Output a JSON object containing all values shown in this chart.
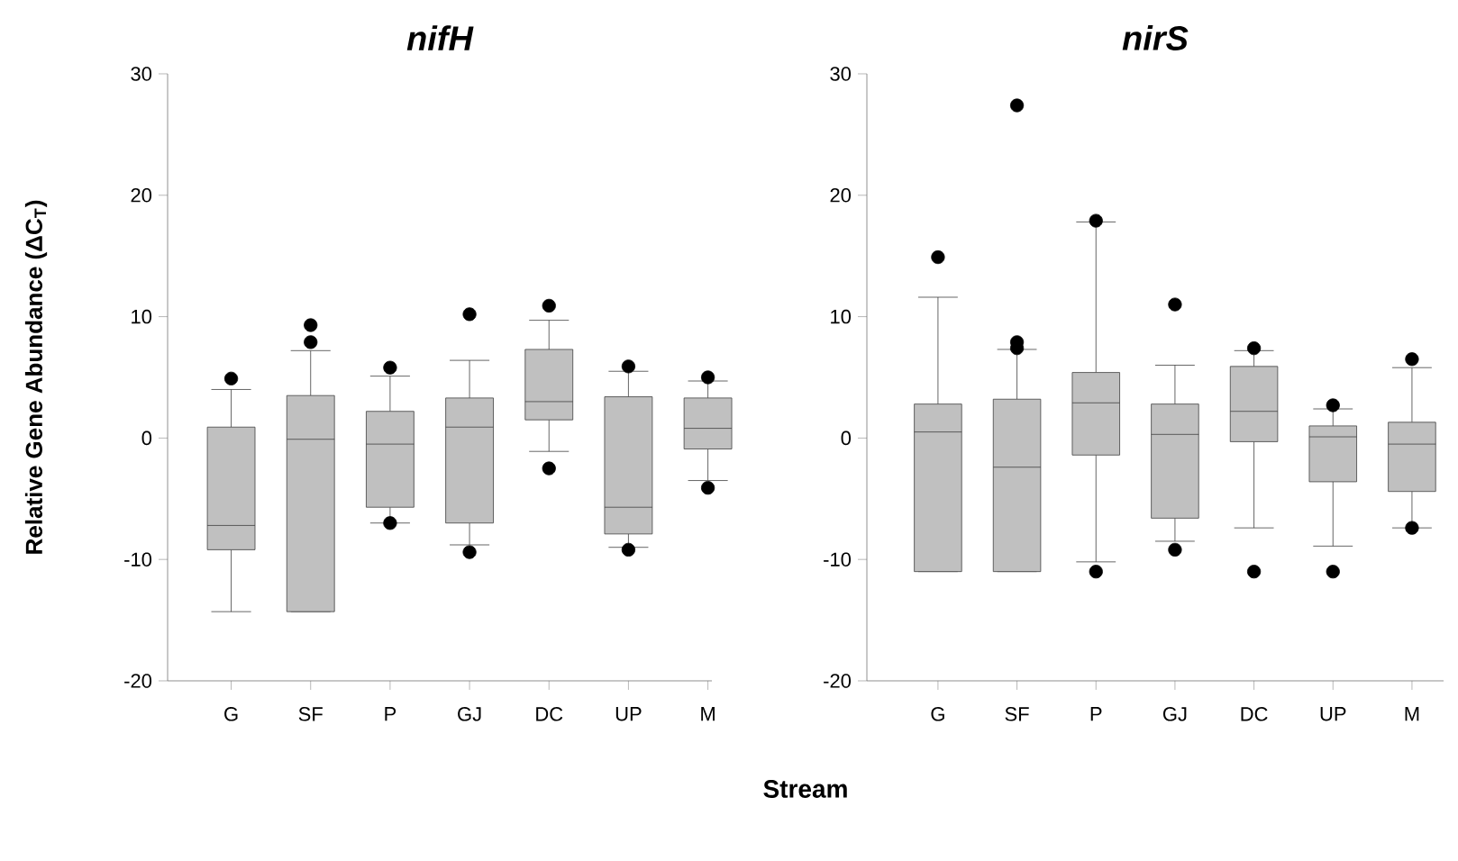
{
  "chart_data": [
    {
      "type": "box",
      "title": "nifH",
      "ylabel": "Relative Gene Abundance (ΔC$_{T}$)",
      "xlabel": "Stream",
      "color": "#c0c0c0",
      "categories": [
        "G",
        "SF",
        "P",
        "GJ",
        "DC",
        "UP",
        "M"
      ],
      "ylim": [
        -20,
        30
      ],
      "yticks": [
        -20,
        -10,
        0,
        10,
        20,
        30
      ],
      "boxes": [
        {
          "low": -14.3,
          "q1": -9.2,
          "median": -7.2,
          "q3": 0.9,
          "high": 4.0,
          "outliers": [
            4.9
          ]
        },
        {
          "low": -14.3,
          "q1": -14.3,
          "median": -0.1,
          "q3": 3.5,
          "high": 7.2,
          "outliers": [
            7.9,
            9.3
          ]
        },
        {
          "low": -7.0,
          "q1": -5.7,
          "median": -0.5,
          "q3": 2.2,
          "high": 5.1,
          "outliers": [
            5.8,
            -7.0
          ]
        },
        {
          "low": -8.8,
          "q1": -7.0,
          "median": 0.9,
          "q3": 3.3,
          "high": 6.4,
          "outliers": [
            10.2,
            -9.4
          ]
        },
        {
          "low": -1.1,
          "q1": 1.5,
          "median": 3.0,
          "q3": 7.3,
          "high": 9.7,
          "outliers": [
            10.9,
            -2.5
          ]
        },
        {
          "low": -9.0,
          "q1": -7.9,
          "median": -5.7,
          "q3": 3.4,
          "high": 5.5,
          "outliers": [
            5.9,
            -9.2
          ]
        },
        {
          "low": -3.5,
          "q1": -0.9,
          "median": 0.8,
          "q3": 3.3,
          "high": 4.7,
          "outliers": [
            5.0,
            -4.1
          ]
        }
      ]
    },
    {
      "type": "box",
      "title": "nirS",
      "color": "#c0c0c0",
      "categories": [
        "G",
        "SF",
        "P",
        "GJ",
        "DC",
        "UP",
        "M"
      ],
      "ylim": [
        -20,
        30
      ],
      "yticks": [
        -20,
        -10,
        0,
        10,
        20,
        30
      ],
      "boxes": [
        {
          "low": -11.0,
          "q1": -11.0,
          "median": 0.5,
          "q3": 2.8,
          "high": 11.6,
          "outliers": [
            14.9
          ]
        },
        {
          "low": -11.0,
          "q1": -11.0,
          "median": -2.4,
          "q3": 3.2,
          "high": 7.3,
          "outliers": [
            27.4,
            7.9,
            7.4
          ]
        },
        {
          "low": -10.2,
          "q1": -1.4,
          "median": 2.9,
          "q3": 5.4,
          "high": 17.8,
          "outliers": [
            17.9,
            -11.0
          ]
        },
        {
          "low": -8.5,
          "q1": -6.6,
          "median": 0.3,
          "q3": 2.8,
          "high": 6.0,
          "outliers": [
            11.0,
            -9.2
          ]
        },
        {
          "low": -7.4,
          "q1": -0.3,
          "median": 2.2,
          "q3": 5.9,
          "high": 7.2,
          "outliers": [
            7.4,
            -11.0
          ]
        },
        {
          "low": -8.9,
          "q1": -3.6,
          "median": 0.1,
          "q3": 1.0,
          "high": 2.4,
          "outliers": [
            2.7,
            -11.0
          ]
        },
        {
          "low": -7.4,
          "q1": -4.4,
          "median": -0.5,
          "q3": 1.3,
          "high": 5.8,
          "outliers": [
            6.5,
            -7.4
          ]
        }
      ]
    }
  ]
}
